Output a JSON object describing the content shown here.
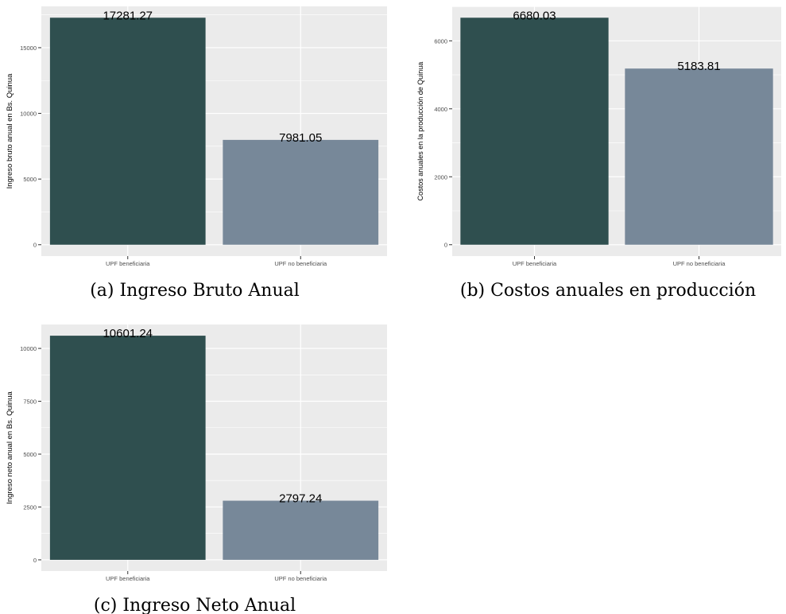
{
  "charts": [
    {
      "caption": "(a) Ingreso Bruto Anual",
      "chart_data": {
        "type": "bar",
        "categories": [
          "UPF beneficiaria",
          "UPF no beneficiaria"
        ],
        "values": [
          17281.27,
          7981.05
        ],
        "value_labels": [
          "17281.27",
          "7981.05"
        ],
        "colors": [
          "#2f4f4f",
          "#778899"
        ],
        "title": "",
        "xlabel": "",
        "ylabel": "Ingreso bruto anual en Bs. Quinua",
        "ylim": [
          -864,
          18145
        ],
        "yticks": [
          0,
          5000,
          10000,
          15000
        ],
        "grid": true,
        "panel_background": "#ebebeb"
      }
    },
    {
      "caption": "(b) Costos anuales en producción",
      "chart_data": {
        "type": "bar",
        "categories": [
          "UPF beneficiaria",
          "UPF no beneficiaria"
        ],
        "values": [
          6680.03,
          5183.81
        ],
        "value_labels": [
          "6680.03",
          "5183.81"
        ],
        "colors": [
          "#2f4f4f",
          "#778899"
        ],
        "title": "",
        "xlabel": "",
        "ylabel": "Costos anuales en la producción de Quinua",
        "ylim": [
          -334,
          7014
        ],
        "yticks": [
          0,
          2000,
          4000,
          6000
        ],
        "grid": true,
        "panel_background": "#ebebeb"
      }
    },
    {
      "caption": "(c) Ingreso Neto Anual",
      "chart_data": {
        "type": "bar",
        "categories": [
          "UPF beneficiaria",
          "UPF no beneficiaria"
        ],
        "values": [
          10601.24,
          2797.24
        ],
        "value_labels": [
          "10601.24",
          "2797.24"
        ],
        "colors": [
          "#2f4f4f",
          "#778899"
        ],
        "title": "",
        "xlabel": "",
        "ylabel": "Ingreso neto anual en Bs. Quinua",
        "ylim": [
          -530,
          11131
        ],
        "yticks": [
          0,
          2500,
          5000,
          7500,
          10000
        ],
        "grid": true,
        "panel_background": "#ebebeb"
      }
    }
  ]
}
